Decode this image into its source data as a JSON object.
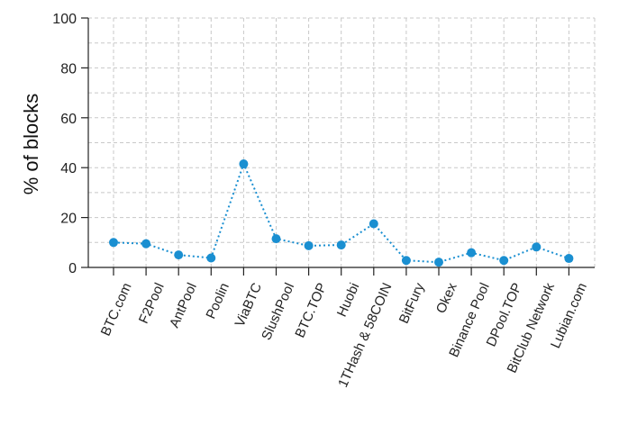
{
  "chart_data": {
    "type": "line",
    "title": "",
    "xlabel": "",
    "ylabel": "% of blocks",
    "ylim": [
      0,
      100
    ],
    "yticks": [
      0,
      20,
      40,
      60,
      80,
      100
    ],
    "grid": true,
    "line_style": "dotted",
    "color": "#1a8fd1",
    "categories": [
      "BTC.com",
      "F2Pool",
      "AntPool",
      "Poolin",
      "ViaBTC",
      "SlushPool",
      "BTC.TOP",
      "Huobi",
      "1THash & 58COIN",
      "BitFury",
      "Okex",
      "Binance Pool",
      "DPool.TOP",
      "BitClub Network",
      "Lubian.com"
    ],
    "values": [
      10,
      9.5,
      5,
      3.8,
      41.5,
      11.5,
      8.7,
      9,
      17.5,
      2.8,
      2.1,
      5.9,
      2.8,
      8.2,
      3.6
    ]
  }
}
